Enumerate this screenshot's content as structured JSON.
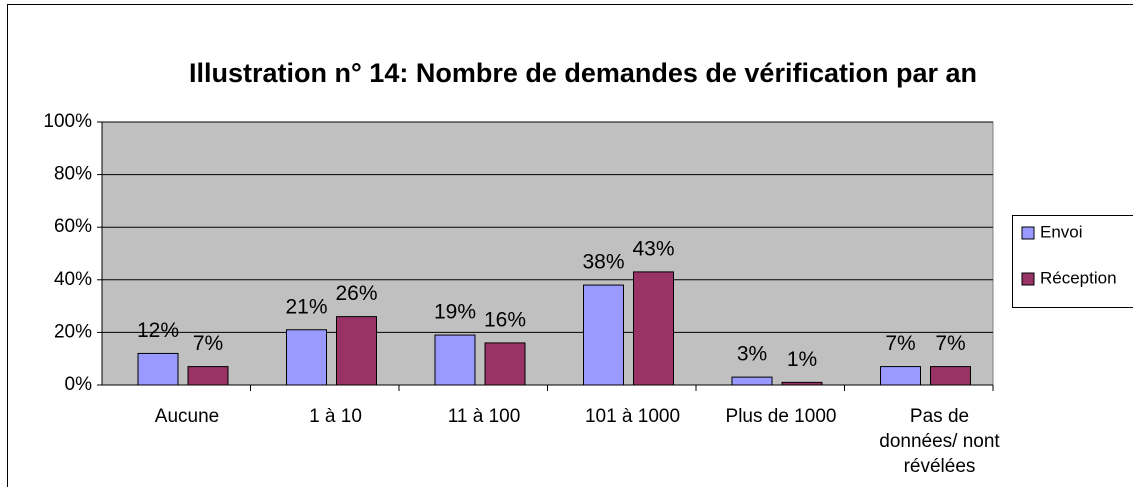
{
  "chart_data": {
    "type": "bar",
    "title": "Illustration n° 14: Nombre de demandes de vérification par an",
    "categories": [
      "Aucune",
      "1 à 10",
      "11 à 100",
      "101 à 1000",
      "Plus de 1000",
      "Pas de données/ nont révélées"
    ],
    "series": [
      {
        "name": "Envoi",
        "color": "#9999ff",
        "values": [
          12,
          21,
          19,
          38,
          3,
          7
        ],
        "value_labels": [
          "12%",
          "21%",
          "19%",
          "38%",
          "3%",
          "7%"
        ]
      },
      {
        "name": "Réception",
        "color": "#993366",
        "values": [
          7,
          26,
          16,
          43,
          1,
          7
        ],
        "value_labels": [
          "7%",
          "26%",
          "16%",
          "43%",
          "1%",
          "7%"
        ]
      }
    ],
    "ylim": [
      0,
      100
    ],
    "yticks": [
      {
        "value": 0,
        "label": "0%"
      },
      {
        "value": 20,
        "label": "20%"
      },
      {
        "value": 40,
        "label": "40%"
      },
      {
        "value": 60,
        "label": "60%"
      },
      {
        "value": 80,
        "label": "80%"
      },
      {
        "value": 100,
        "label": "100%"
      }
    ],
    "grid": true,
    "legend": "right"
  }
}
